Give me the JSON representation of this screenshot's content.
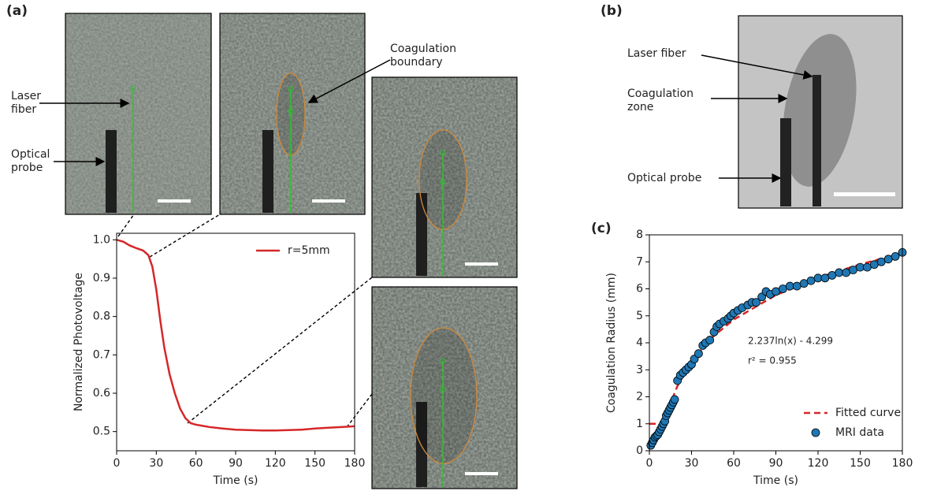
{
  "figure": {
    "panel_labels": [
      "(a)",
      "(b)",
      "(c)"
    ],
    "a_laser_fiber": [
      "Laser",
      "fiber"
    ],
    "a_optical_probe": [
      "Optical",
      "probe"
    ],
    "a_boundary": [
      "Coagulation",
      "boundary"
    ],
    "b_laser_fiber": "Laser fiber",
    "b_zone": [
      "Coagulation",
      "zone"
    ],
    "b_optical_probe": "Optical probe"
  },
  "chart_data": [
    {
      "type": "line",
      "xlabel": "Time (s)",
      "ylabel": "Normalized Photovoltage",
      "xlim": [
        0,
        180
      ],
      "ylim": [
        0.45,
        1.017
      ],
      "xticks": [
        0,
        30,
        60,
        90,
        120,
        150,
        180
      ],
      "yticks": [
        0.5,
        0.6,
        0.7,
        0.8,
        0.9,
        {
          "value": 1,
          "label": "1.0"
        }
      ],
      "legend": "upper right",
      "series": [
        {
          "name": "r=5mm",
          "color": "#d62728",
          "type": "line",
          "x": [
            0,
            5,
            10,
            15,
            20,
            24,
            27,
            30,
            33,
            36,
            40,
            44,
            48,
            52,
            56,
            60,
            70,
            80,
            90,
            100,
            110,
            120,
            130,
            140,
            150,
            160,
            170,
            180
          ],
          "values": [
            1.0,
            0.995,
            0.985,
            0.978,
            0.972,
            0.96,
            0.93,
            0.87,
            0.79,
            0.72,
            0.65,
            0.6,
            0.56,
            0.535,
            0.522,
            0.518,
            0.512,
            0.508,
            0.505,
            0.504,
            0.503,
            0.503,
            0.504,
            0.505,
            0.508,
            0.51,
            0.512,
            0.514
          ]
        }
      ]
    },
    {
      "type": "scatter",
      "xlabel": "Time (s)",
      "ylabel": "Coagulation Radius (mm)",
      "xlim": [
        0,
        180
      ],
      "ylim": [
        0,
        8
      ],
      "xticks": [
        0,
        30,
        60,
        90,
        120,
        150,
        180
      ],
      "yticks": [
        0,
        1,
        2,
        3,
        4,
        5,
        6,
        7,
        8
      ],
      "legend": "lower right",
      "annotations": [
        "2.237ln(x) - 4.299",
        "r² = 0.955"
      ],
      "series": [
        {
          "name": "Fitted curve",
          "color": "#d62728",
          "type": "line",
          "style": "dashed",
          "x": [
            0,
            10.7,
            15,
            20,
            30,
            45,
            60,
            90,
            120,
            150,
            180
          ],
          "values": [
            1,
            1,
            1.759,
            2.403,
            3.31,
            4.217,
            4.86,
            5.767,
            6.411,
            6.91,
            7.318
          ]
        },
        {
          "name": "MRI data",
          "color": "#1f77b4",
          "type": "scatter",
          "x": [
            1,
            2,
            3,
            4,
            5,
            6,
            7,
            8,
            9,
            10,
            11,
            12,
            13,
            14,
            15,
            16,
            17,
            18,
            20,
            22,
            24,
            26,
            28,
            30,
            32,
            35,
            38,
            40,
            43,
            46,
            48,
            50,
            53,
            56,
            58,
            60,
            63,
            66,
            70,
            73,
            76,
            80,
            83,
            86,
            90,
            95,
            100,
            105,
            110,
            115,
            120,
            125,
            130,
            135,
            140,
            145,
            150,
            155,
            160,
            165,
            170,
            175,
            180
          ],
          "values": [
            0.2,
            0.3,
            0.4,
            0.5,
            0.55,
            0.6,
            0.7,
            0.8,
            0.9,
            1.0,
            1.1,
            1.3,
            1.4,
            1.5,
            1.6,
            1.7,
            1.8,
            1.9,
            2.6,
            2.8,
            2.9,
            3.0,
            3.1,
            3.2,
            3.4,
            3.6,
            3.9,
            4.0,
            4.1,
            4.4,
            4.6,
            4.7,
            4.8,
            4.9,
            5.0,
            5.1,
            5.2,
            5.3,
            5.4,
            5.5,
            5.5,
            5.7,
            5.9,
            5.8,
            5.9,
            6.0,
            6.1,
            6.1,
            6.2,
            6.3,
            6.4,
            6.4,
            6.5,
            6.6,
            6.6,
            6.7,
            6.8,
            6.8,
            6.9,
            7.0,
            7.1,
            7.2,
            7.35
          ]
        }
      ]
    }
  ]
}
